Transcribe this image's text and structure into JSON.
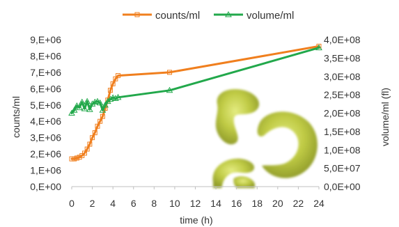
{
  "chart_data": {
    "type": "line",
    "xlabel": "time (h)",
    "ylabel_left": "counts/ml",
    "ylabel_right": "volume/ml (fl)",
    "xlim": [
      0,
      24
    ],
    "x_ticks": [
      "0",
      "2",
      "4",
      "6",
      "8",
      "10",
      "12",
      "14",
      "16",
      "18",
      "20",
      "22",
      "24"
    ],
    "ylim_left": [
      0,
      9000000
    ],
    "y_left_ticks": [
      "0,E+00",
      "1,E+06",
      "2,E+06",
      "3,E+06",
      "4,E+06",
      "5,E+06",
      "6,E+06",
      "7,E+06",
      "8,E+06",
      "9,E+06"
    ],
    "ylim_right": [
      0,
      400000000
    ],
    "y_right_ticks": [
      "0,0E+00",
      "5,0E+07",
      "1,0E+08",
      "1,5E+08",
      "2,0E+08",
      "2,5E+08",
      "3,0E+08",
      "3,5E+08",
      "4,0E+08"
    ],
    "grid": false,
    "legend_position": "top",
    "series": [
      {
        "name": "counts/ml",
        "axis": "left",
        "color": "#F07F1E",
        "marker": "square",
        "points": [
          [
            0,
            1700000
          ],
          [
            0.25,
            1700000
          ],
          [
            0.5,
            1750000
          ],
          [
            0.75,
            1800000
          ],
          [
            1,
            1900000
          ],
          [
            1.25,
            2050000
          ],
          [
            1.5,
            2300000
          ],
          [
            1.75,
            2600000
          ],
          [
            2,
            3000000
          ],
          [
            2.25,
            3300000
          ],
          [
            2.5,
            3700000
          ],
          [
            2.75,
            4000000
          ],
          [
            3,
            4300000
          ],
          [
            3.25,
            4800000
          ],
          [
            3.5,
            5300000
          ],
          [
            3.75,
            5900000
          ],
          [
            4,
            6300000
          ],
          [
            4.25,
            6600000
          ],
          [
            4.5,
            6800000
          ],
          [
            9.5,
            7000000
          ],
          [
            24,
            8600000
          ]
        ]
      },
      {
        "name": "volume/ml",
        "axis": "right",
        "color": "#22A84B",
        "marker": "triangle",
        "points": [
          [
            0,
            200000000
          ],
          [
            0.25,
            208000000
          ],
          [
            0.5,
            220000000
          ],
          [
            0.75,
            215000000
          ],
          [
            1,
            230000000
          ],
          [
            1.25,
            212000000
          ],
          [
            1.5,
            232000000
          ],
          [
            1.75,
            210000000
          ],
          [
            2,
            225000000
          ],
          [
            2.25,
            230000000
          ],
          [
            2.5,
            232000000
          ],
          [
            2.75,
            228000000
          ],
          [
            3,
            208000000
          ],
          [
            3.25,
            222000000
          ],
          [
            3.5,
            232000000
          ],
          [
            3.75,
            238000000
          ],
          [
            4,
            242000000
          ],
          [
            4.25,
            240000000
          ],
          [
            4.5,
            243000000
          ],
          [
            9.5,
            262000000
          ],
          [
            24,
            378000000
          ]
        ]
      }
    ]
  }
}
